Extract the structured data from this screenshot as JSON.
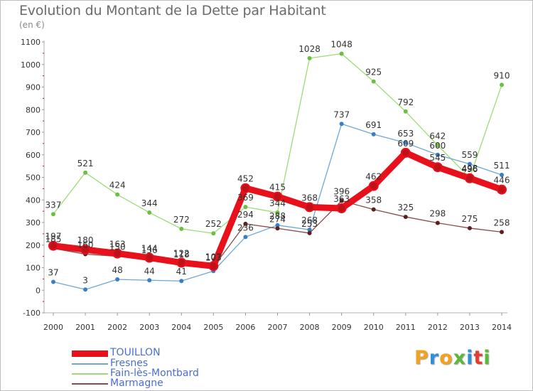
{
  "title": "Evolution du Montant de la Dette par Habitant",
  "unit_label": "(en €)",
  "logo": {
    "text": "Proxiti",
    "letters": [
      "P",
      "r",
      "o",
      "x",
      "i",
      "t",
      "i"
    ],
    "colors": [
      "#f2a21e",
      "#2f8fd8",
      "#f2a21e",
      "#5cb73a",
      "#2f8fd8",
      "#e63b2e",
      "#5cb73a"
    ]
  },
  "chart_data": {
    "type": "line",
    "x": [
      "2000",
      "2001",
      "2002",
      "2003",
      "2004",
      "2005",
      "2006",
      "2007",
      "2008",
      "2009",
      "2010",
      "2011",
      "2012",
      "2013",
      "2014"
    ],
    "ylim": [
      -100,
      1100
    ],
    "yticks": [
      "-100",
      "0",
      "100",
      "200",
      "300",
      "400",
      "500",
      "600",
      "700",
      "800",
      "900",
      "1000",
      "1100"
    ],
    "grid": false,
    "legend_position": "bottom-left",
    "series": [
      {
        "name": "TOUILLON",
        "color": "#e8111b",
        "marker_color": "#c0111b",
        "values": [
          197,
          180,
          163,
          144,
          122,
          107,
          452,
          415,
          368,
          363,
          462,
          609,
          545,
          496,
          446
        ],
        "labels": [
          "197",
          "180",
          "163",
          "144",
          "122",
          "107",
          "452",
          "415",
          "368",
          "363",
          "462",
          "609",
          "545",
          "496",
          "446"
        ]
      },
      {
        "name": "Fresnes",
        "color": "#6fa7d4",
        "marker_color": "#3b7fc0",
        "values": [
          37,
          3,
          48,
          44,
          41,
          85,
          236,
          288,
          268,
          737,
          691,
          653,
          600,
          559,
          511
        ],
        "labels": [
          "37",
          "3",
          "48",
          "44",
          "41",
          "",
          "236",
          "288",
          "268",
          "737",
          "691",
          "653",
          "600",
          "559",
          "511"
        ]
      },
      {
        "name": "Fain-lès-Montbard",
        "color": "#9edb77",
        "marker_color": "#6cc040",
        "values": [
          337,
          521,
          424,
          344,
          272,
          252,
          369,
          344,
          1028,
          1048,
          925,
          792,
          642,
          498,
          910
        ],
        "labels": [
          "337",
          "521",
          "424",
          "344",
          "272",
          "252",
          "369",
          "344",
          "1028",
          "1048",
          "925",
          "792",
          "642",
          "498",
          "910"
        ]
      },
      {
        "name": "Marmagne",
        "color": "#8a4b4b",
        "marker_color": "#5e1f1f",
        "values": [
          185,
          160,
          150,
          136,
          118,
          103,
          294,
          274,
          253,
          396,
          358,
          325,
          298,
          275,
          258
        ],
        "labels": [
          "185",
          "160",
          "150",
          "136",
          "118",
          "103",
          "294",
          "274",
          "253",
          "396",
          "358",
          "325",
          "298",
          "275",
          "258"
        ]
      }
    ]
  }
}
